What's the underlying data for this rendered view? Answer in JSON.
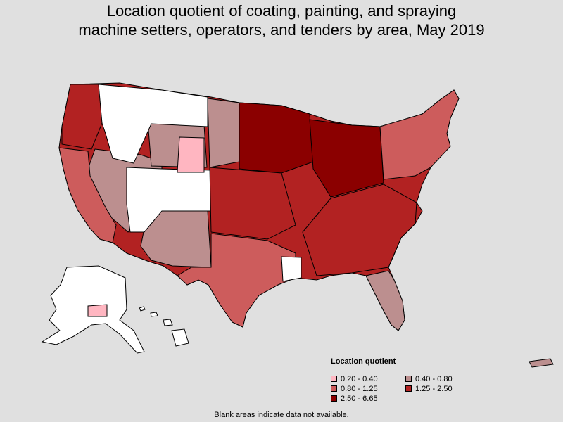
{
  "title_line1": "Location quotient of coating, painting, and spraying",
  "title_line2": "machine setters, operators, and tenders by area, May 2019",
  "legend": {
    "title": "Location quotient",
    "items": [
      {
        "label": "0.20 - 0.40",
        "color": "#ffb6c1"
      },
      {
        "label": "0.40 - 0.80",
        "color": "#bc8f8f"
      },
      {
        "label": "0.80 - 1.25",
        "color": "#cd5c5c"
      },
      {
        "label": "1.25 - 2.50",
        "color": "#b22222"
      },
      {
        "label": "2.50 - 6.65",
        "color": "#8b0000"
      }
    ]
  },
  "footnote": "Blank areas indicate data not available.",
  "colors": {
    "background": "#e0e0e0",
    "blank": "#ffffff",
    "outline": "#000000"
  }
}
